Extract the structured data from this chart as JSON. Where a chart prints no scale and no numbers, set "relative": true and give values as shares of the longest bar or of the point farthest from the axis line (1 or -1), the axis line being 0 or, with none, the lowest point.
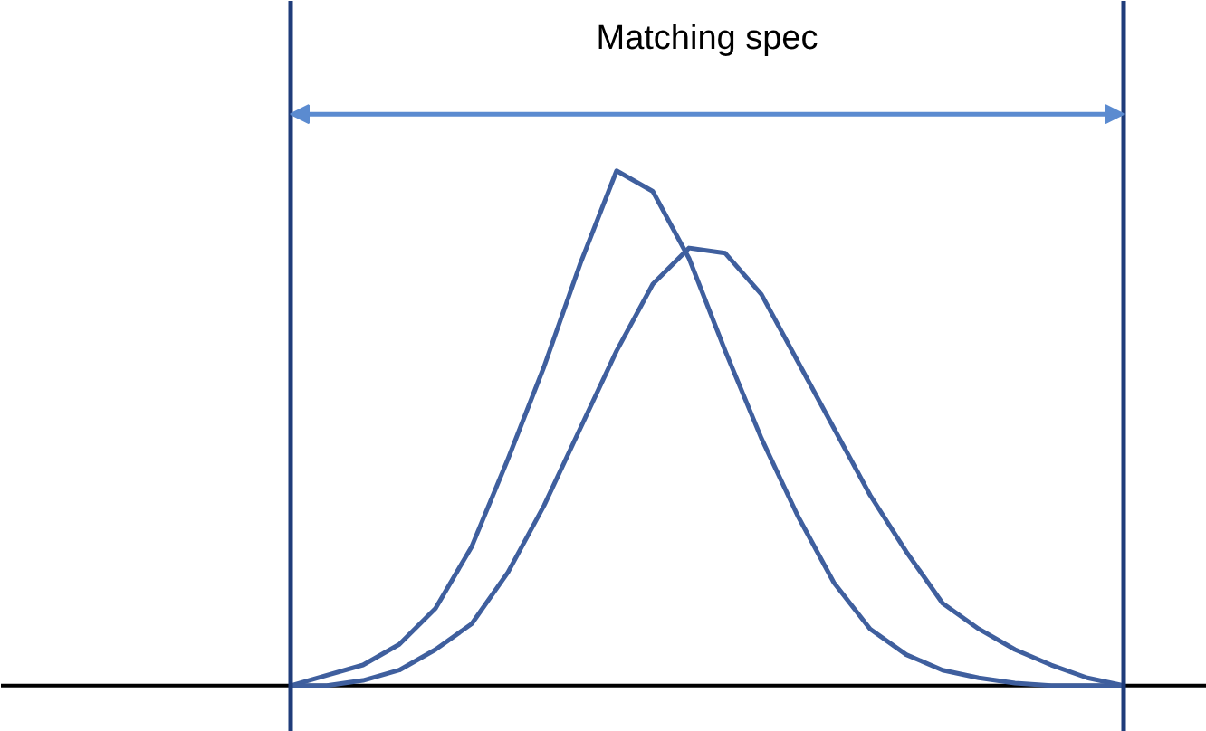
{
  "chart_data": {
    "type": "line",
    "relative": true,
    "categories": [
      null,
      null,
      null,
      null,
      null,
      null,
      null,
      null,
      null,
      null,
      null,
      null,
      null,
      null,
      null,
      null,
      null,
      null,
      null,
      null,
      null,
      null,
      null,
      null
    ],
    "grid": false,
    "marker": "none",
    "line_style": "solid",
    "series": [
      {
        "color": "#3f5f9e",
        "values": [
          0,
          0.02,
          0.04,
          0.08,
          0.15,
          0.27,
          0.44,
          0.62,
          0.82,
          1.0,
          0.96,
          0.83,
          0.65,
          0.48,
          0.33,
          0.2,
          0.11,
          0.06,
          0.03,
          0.015,
          0.005,
          0,
          0,
          0
        ]
      },
      {
        "color": "#3f5f9e",
        "values": [
          0,
          0,
          0.01,
          0.03,
          0.07,
          0.12,
          0.22,
          0.35,
          0.5,
          0.65,
          0.78,
          0.85,
          0.84,
          0.76,
          0.63,
          0.5,
          0.37,
          0.26,
          0.16,
          0.11,
          0.07,
          0.04,
          0.015,
          0
        ]
      }
    ],
    "annotations": [
      "Matching spec"
    ]
  }
}
